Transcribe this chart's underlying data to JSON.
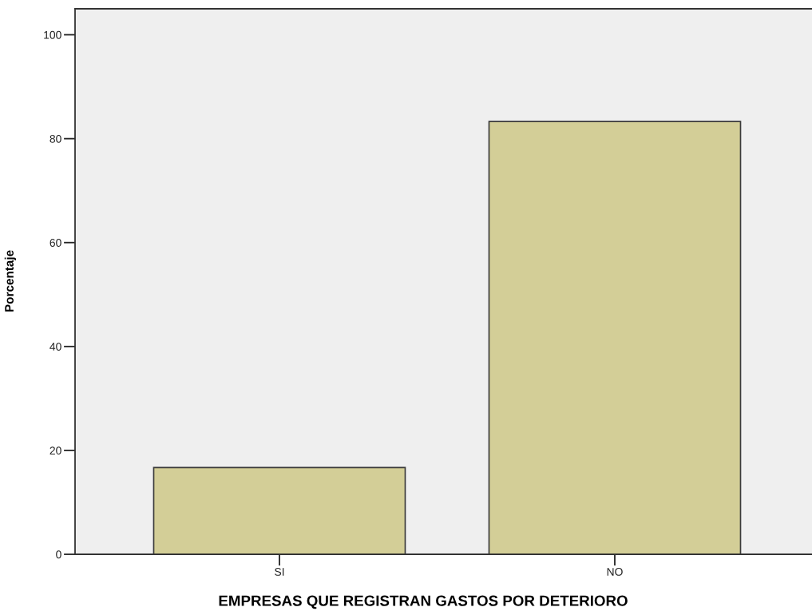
{
  "chart_data": {
    "type": "bar",
    "xlabel": "EMPRESAS QUE REGISTRAN GASTOS POR DETERIORO",
    "ylabel": "Porcentaje",
    "categories": [
      "SI",
      "NO"
    ],
    "values": [
      16.7,
      83.3
    ],
    "color": "#d3ce97",
    "ylim": [
      0,
      105
    ],
    "yticks": [
      0,
      20,
      40,
      60,
      80,
      100
    ]
  }
}
